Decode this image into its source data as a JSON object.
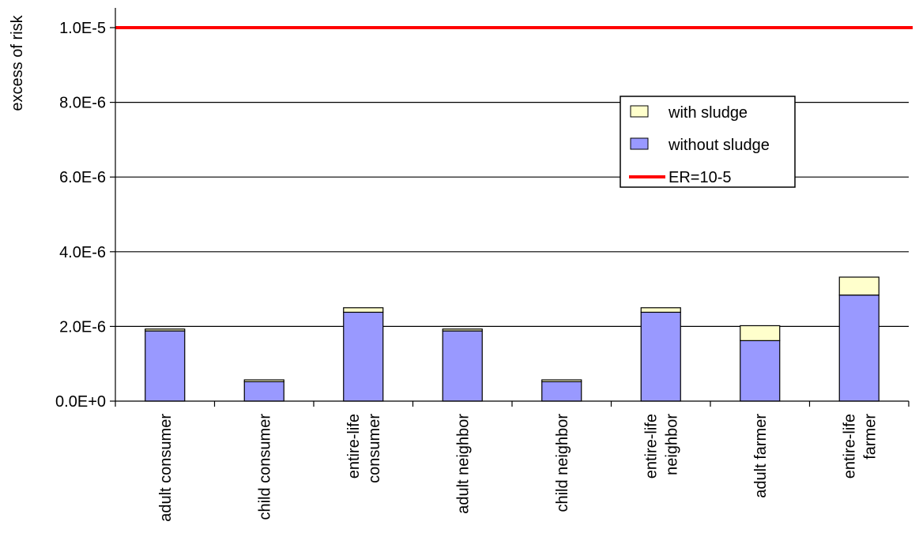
{
  "chart_data": {
    "type": "bar",
    "stacked": true,
    "title": "",
    "xlabel": "",
    "ylabel": "excess of risk",
    "ylim": [
      0,
      1.05e-05
    ],
    "y_ticks": [
      0,
      2e-06,
      4e-06,
      6e-06,
      8e-06,
      1e-05
    ],
    "y_tick_labels": [
      "0.0E+0",
      "2.0E-6",
      "4.0E-6",
      "6.0E-6",
      "8.0E-6",
      "1.0E-5"
    ],
    "grid": true,
    "categories": [
      [
        "adult consumer"
      ],
      [
        "child consumer"
      ],
      [
        "entire-life",
        "consumer"
      ],
      [
        "adult neighbor"
      ],
      [
        "child neighbor"
      ],
      [
        "entire-life",
        "neighbor"
      ],
      [
        "adult farmer"
      ],
      [
        "entire-life",
        "farmer"
      ]
    ],
    "series": [
      {
        "name": "without sludge",
        "color": "#9999ff",
        "values": [
          1.88e-06,
          5.2e-07,
          2.38e-06,
          1.88e-06,
          5.2e-07,
          2.38e-06,
          1.62e-06,
          2.84e-06
        ]
      },
      {
        "name": "with sludge",
        "color": "#ffffcc",
        "values": [
          5e-08,
          5e-08,
          1.2e-07,
          5e-08,
          5e-08,
          1.2e-07,
          4e-07,
          4.8e-07
        ]
      }
    ],
    "reference_line": {
      "name": "ER=10-5",
      "value": 1e-05,
      "color": "#ff0000"
    },
    "legend": {
      "position": "right",
      "entries": [
        "with sludge",
        "without sludge",
        "ER=10-5"
      ]
    }
  }
}
